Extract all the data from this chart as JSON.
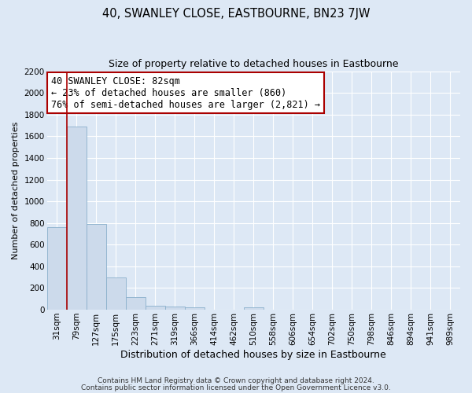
{
  "title": "40, SWANLEY CLOSE, EASTBOURNE, BN23 7JW",
  "subtitle": "Size of property relative to detached houses in Eastbourne",
  "xlabel": "Distribution of detached houses by size in Eastbourne",
  "ylabel": "Number of detached properties",
  "bar_labels": [
    "31sqm",
    "79sqm",
    "127sqm",
    "175sqm",
    "223sqm",
    "271sqm",
    "319sqm",
    "366sqm",
    "414sqm",
    "462sqm",
    "510sqm",
    "558sqm",
    "606sqm",
    "654sqm",
    "702sqm",
    "750sqm",
    "798sqm",
    "846sqm",
    "894sqm",
    "941sqm",
    "989sqm"
  ],
  "bar_values": [
    760,
    1690,
    790,
    295,
    115,
    40,
    32,
    25,
    0,
    0,
    20,
    0,
    0,
    0,
    0,
    0,
    0,
    0,
    0,
    0,
    0
  ],
  "bar_color": "#ccdaeb",
  "bar_edge_color": "#8ab0cc",
  "annotation_line1": "40 SWANLEY CLOSE: 82sqm",
  "annotation_line2": "← 23% of detached houses are smaller (860)",
  "annotation_line3": "76% of semi-detached houses are larger (2,821) →",
  "ylim": [
    0,
    2200
  ],
  "yticks": [
    0,
    200,
    400,
    600,
    800,
    1000,
    1200,
    1400,
    1600,
    1800,
    2000,
    2200
  ],
  "footer_line1": "Contains HM Land Registry data © Crown copyright and database right 2024.",
  "footer_line2": "Contains public sector information licensed under the Open Government Licence v3.0.",
  "bg_color": "#dde8f5",
  "plot_bg_color": "#dde8f5",
  "grid_color": "#ffffff",
  "annotation_box_color": "#ffffff",
  "red_line_color": "#aa0000",
  "title_fontsize": 10.5,
  "subtitle_fontsize": 9,
  "xlabel_fontsize": 9,
  "ylabel_fontsize": 8,
  "tick_fontsize": 7.5,
  "annotation_fontsize": 8.5,
  "footer_fontsize": 6.5
}
